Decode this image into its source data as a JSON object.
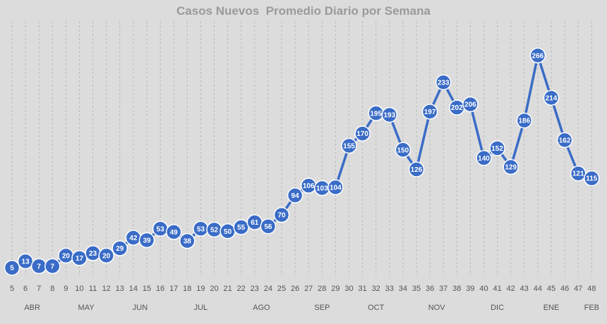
{
  "chart_data": {
    "type": "line",
    "title": "Casos Nuevos  Promedio Diario por Semana",
    "xlabel": "",
    "ylabel": "",
    "grid": "vertical dashed",
    "legend": "none",
    "line_color": "#3a6cc7",
    "x": [
      5,
      6,
      7,
      8,
      9,
      10,
      11,
      12,
      13,
      14,
      15,
      16,
      17,
      18,
      19,
      20,
      21,
      22,
      23,
      24,
      25,
      26,
      27,
      28,
      29,
      30,
      31,
      32,
      33,
      34,
      35,
      36,
      37,
      38,
      39,
      40,
      41,
      42,
      43,
      44,
      45,
      46,
      47,
      48
    ],
    "values": [
      5,
      13,
      7,
      7,
      20,
      17,
      23,
      20,
      29,
      42,
      39,
      53,
      49,
      38,
      53,
      52,
      50,
      55,
      61,
      56,
      70,
      94,
      106,
      103,
      104,
      155,
      170,
      195,
      193,
      150,
      126,
      197,
      233,
      202,
      206,
      140,
      152,
      129,
      186,
      266,
      214,
      162,
      121,
      115
    ],
    "months": [
      {
        "label": "ABR",
        "week": 6.5
      },
      {
        "label": "MAY",
        "week": 10.5
      },
      {
        "label": "JUN",
        "week": 14.5
      },
      {
        "label": "JUL",
        "week": 19
      },
      {
        "label": "AGO",
        "week": 23.5
      },
      {
        "label": "SEP",
        "week": 28
      },
      {
        "label": "OCT",
        "week": 32
      },
      {
        "label": "NOV",
        "week": 36.5
      },
      {
        "label": "DIC",
        "week": 41
      },
      {
        "label": "ENE",
        "week": 45
      },
      {
        "label": "FEB",
        "week": 48
      }
    ]
  }
}
